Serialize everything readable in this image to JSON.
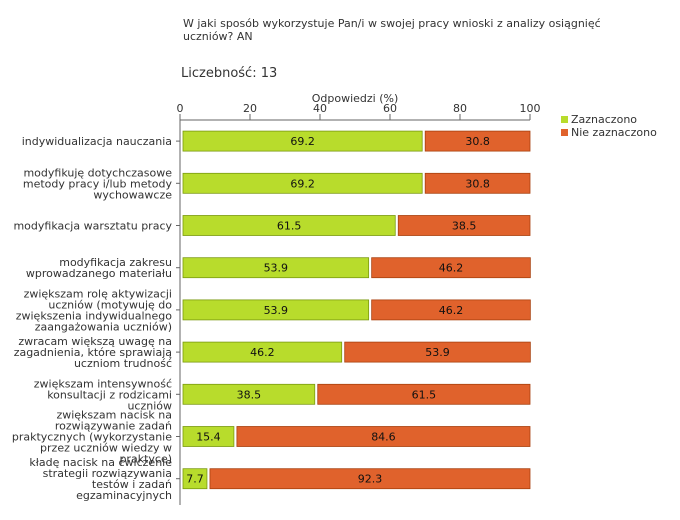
{
  "chart_data": {
    "type": "bar",
    "stacked": true,
    "orientation": "horizontal",
    "title": "W jaki sposób wykorzystuje Pan/i w swojej pracy wnioski z analizy osiągnięć uczniów? AN",
    "count_label": "Liczebność:",
    "count_value": "13",
    "xlabel": "Odpowiedzi (%)",
    "xlim": [
      0,
      100
    ],
    "xticks": [
      "0",
      "20",
      "40",
      "60",
      "80",
      "100"
    ],
    "legend_position": "top-right",
    "categories": [
      [
        "indywidualizacja nauczania"
      ],
      [
        "modyfikuję dotychczasowe",
        "metody pracy i/lub metody",
        "wychowawcze"
      ],
      [
        "modyfikacja warsztatu pracy"
      ],
      [
        "modyfikacja zakresu",
        "wprowadzanego materiału"
      ],
      [
        "zwiększam rolę aktywizacji",
        "uczniów (motywuję do",
        "zwiększenia indywidualnego",
        "zaangażowania uczniów)"
      ],
      [
        "zwracam większą uwagę na",
        "zagadnienia, które sprawiają",
        "uczniom trudność"
      ],
      [
        "zwiększam intensywność",
        "konsultacji z rodzicami",
        "uczniów"
      ],
      [
        "zwiększam nacisk na",
        "rozwiązywanie zadań",
        "praktycznych (wykorzystanie",
        "przez uczniów wiedzy w",
        "praktyce)"
      ],
      [
        "kładę nacisk na ćwiczenie",
        "strategii rozwiązywania",
        "testów i zadań",
        "egzaminacyjnych"
      ]
    ],
    "series": [
      {
        "name": "Zaznaczono",
        "color": "#b8dc2c",
        "values": [
          69.2,
          69.2,
          61.5,
          53.9,
          53.9,
          46.2,
          38.5,
          15.4,
          7.7
        ],
        "labels": [
          "69.2",
          "69.2",
          "61.5",
          "53.9",
          "53.9",
          "46.2",
          "38.5",
          "15.4",
          "7.7"
        ]
      },
      {
        "name": "Nie zaznaczono",
        "color": "#e0622c",
        "values": [
          30.8,
          30.8,
          38.5,
          46.2,
          46.2,
          53.9,
          61.5,
          84.6,
          92.3
        ],
        "labels": [
          "30.8",
          "30.8",
          "38.5",
          "46.2",
          "46.2",
          "53.9",
          "61.5",
          "84.6",
          "92.3"
        ]
      }
    ]
  }
}
